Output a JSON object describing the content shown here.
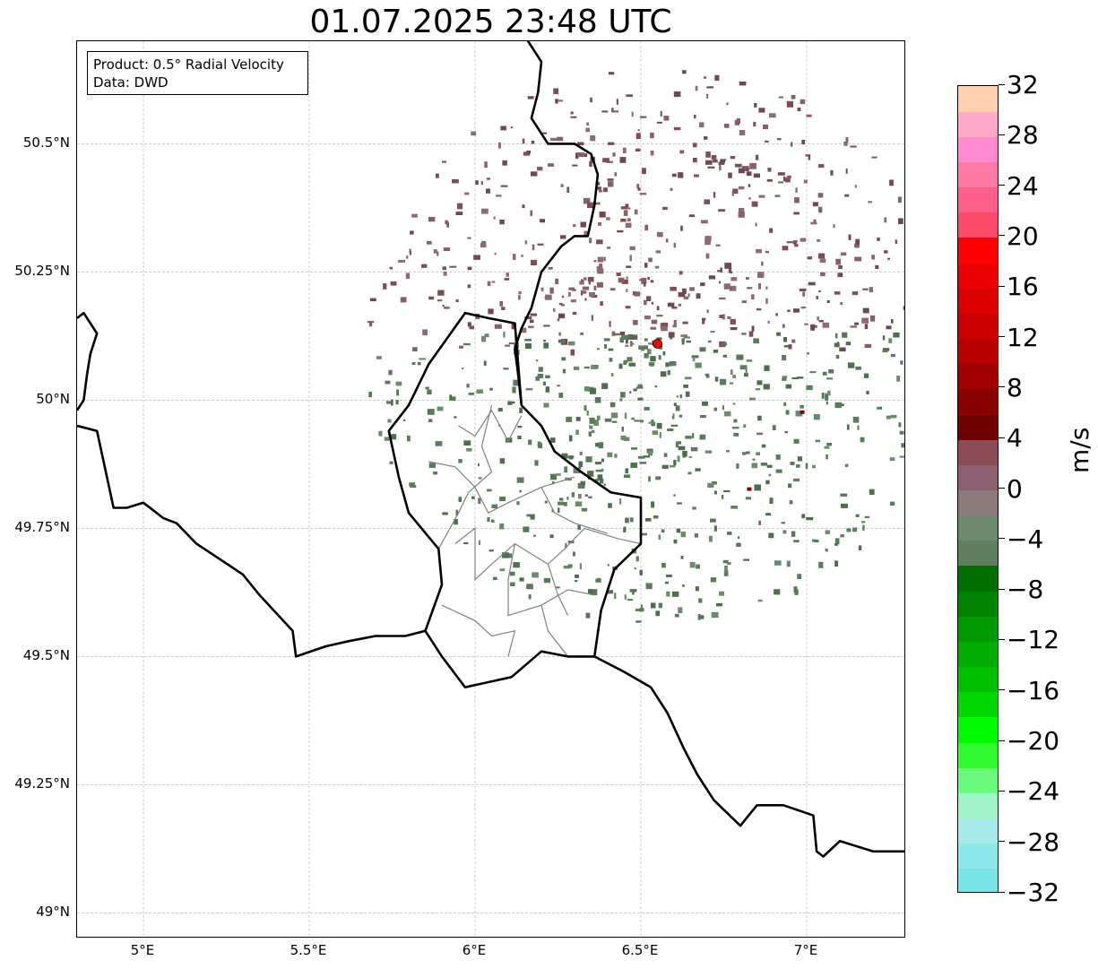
{
  "title": "01.07.2025 23:48 UTC",
  "info_box": {
    "product": "Product: 0.5° Radial Velocity",
    "data_source": "Data: DWD"
  },
  "map": {
    "extent": {
      "lon_min": 4.8,
      "lon_max": 7.3,
      "lat_min": 48.95,
      "lat_max": 50.7
    },
    "lat_ticks": [
      {
        "value": 50.5,
        "label": "50.5°N"
      },
      {
        "value": 50.25,
        "label": "50.25°N"
      },
      {
        "value": 50.0,
        "label": "50°N"
      },
      {
        "value": 49.75,
        "label": "49.75°N"
      },
      {
        "value": 49.5,
        "label": "49.5°N"
      },
      {
        "value": 49.25,
        "label": "49.25°N"
      },
      {
        "value": 49.0,
        "label": "49°N"
      }
    ],
    "lon_ticks": [
      {
        "value": 5.0,
        "label": "5°E"
      },
      {
        "value": 5.5,
        "label": "5.5°E"
      },
      {
        "value": 6.0,
        "label": "6°E"
      },
      {
        "value": 6.5,
        "label": "6.5°E"
      },
      {
        "value": 7.0,
        "label": "7°E"
      }
    ],
    "radar_site": {
      "lon": 6.55,
      "lat": 50.11,
      "color": "#ff0000"
    },
    "borders": {
      "west": [
        [
          4.8,
          50.16
        ],
        [
          4.82,
          50.17
        ],
        [
          4.86,
          50.13
        ],
        [
          4.84,
          50.09
        ],
        [
          4.83,
          50.05
        ],
        [
          4.82,
          50.0
        ],
        [
          4.8,
          49.98
        ]
      ],
      "france_belgium": [
        [
          4.8,
          49.95
        ],
        [
          4.86,
          49.94
        ],
        [
          4.88,
          49.88
        ],
        [
          4.91,
          49.79
        ],
        [
          4.95,
          49.79
        ],
        [
          5.0,
          49.8
        ],
        [
          5.06,
          49.77
        ],
        [
          5.1,
          49.76
        ],
        [
          5.16,
          49.72
        ],
        [
          5.23,
          49.69
        ],
        [
          5.3,
          49.66
        ],
        [
          5.35,
          49.62
        ],
        [
          5.45,
          49.55
        ],
        [
          5.46,
          49.5
        ],
        [
          5.55,
          49.52
        ],
        [
          5.62,
          49.53
        ],
        [
          5.7,
          49.54
        ],
        [
          5.79,
          49.54
        ],
        [
          5.85,
          49.55
        ]
      ],
      "luxembourg": [
        [
          5.85,
          49.55
        ],
        [
          5.9,
          49.64
        ],
        [
          5.89,
          49.71
        ],
        [
          5.8,
          49.78
        ],
        [
          5.77,
          49.85
        ],
        [
          5.74,
          49.94
        ],
        [
          5.8,
          49.99
        ],
        [
          5.86,
          50.07
        ],
        [
          5.97,
          50.17
        ],
        [
          6.04,
          50.16
        ],
        [
          6.12,
          50.15
        ],
        [
          6.13,
          50.07
        ],
        [
          6.14,
          49.99
        ],
        [
          6.2,
          49.95
        ],
        [
          6.24,
          49.9
        ],
        [
          6.32,
          49.86
        ],
        [
          6.41,
          49.82
        ],
        [
          6.5,
          49.81
        ],
        [
          6.5,
          49.72
        ],
        [
          6.42,
          49.67
        ],
        [
          6.38,
          49.59
        ],
        [
          6.36,
          49.5
        ],
        [
          6.28,
          49.5
        ],
        [
          6.2,
          49.51
        ],
        [
          6.11,
          49.46
        ],
        [
          6.04,
          49.45
        ],
        [
          5.97,
          49.44
        ],
        [
          5.9,
          49.5
        ],
        [
          5.85,
          49.55
        ]
      ],
      "belgium_germany": [
        [
          6.14,
          50.72
        ],
        [
          6.2,
          50.66
        ],
        [
          6.19,
          50.6
        ],
        [
          6.17,
          50.55
        ],
        [
          6.22,
          50.5
        ],
        [
          6.3,
          50.5
        ],
        [
          6.35,
          50.48
        ],
        [
          6.37,
          50.44
        ],
        [
          6.36,
          50.38
        ],
        [
          6.34,
          50.32
        ],
        [
          6.3,
          50.32
        ],
        [
          6.26,
          50.3
        ],
        [
          6.2,
          50.25
        ],
        [
          6.17,
          50.18
        ],
        [
          6.14,
          50.14
        ],
        [
          6.12,
          50.1
        ],
        [
          6.13,
          50.05
        ],
        [
          6.14,
          49.99
        ]
      ],
      "germany_france": [
        [
          6.36,
          49.5
        ],
        [
          6.45,
          49.47
        ],
        [
          6.53,
          49.44
        ],
        [
          6.58,
          49.39
        ],
        [
          6.63,
          49.32
        ],
        [
          6.67,
          49.27
        ],
        [
          6.72,
          49.22
        ],
        [
          6.8,
          49.17
        ],
        [
          6.85,
          49.21
        ],
        [
          6.93,
          49.21
        ],
        [
          7.02,
          49.19
        ],
        [
          7.03,
          49.12
        ],
        [
          7.05,
          49.11
        ],
        [
          7.1,
          49.14
        ],
        [
          7.2,
          49.12
        ],
        [
          7.3,
          49.12
        ]
      ]
    },
    "cantons": [
      [
        [
          5.95,
          49.95
        ],
        [
          6.0,
          49.93
        ],
        [
          6.05,
          49.98
        ],
        [
          6.1,
          49.92
        ],
        [
          6.14,
          49.97
        ]
      ],
      [
        [
          5.86,
          49.88
        ],
        [
          5.94,
          49.87
        ],
        [
          6.0,
          49.83
        ],
        [
          6.04,
          49.78
        ],
        [
          6.1,
          49.8
        ],
        [
          6.2,
          49.83
        ],
        [
          6.3,
          49.85
        ]
      ],
      [
        [
          6.05,
          49.99
        ],
        [
          6.02,
          49.91
        ],
        [
          6.05,
          49.86
        ],
        [
          5.98,
          49.82
        ]
      ],
      [
        [
          5.94,
          49.72
        ],
        [
          6.0,
          49.75
        ],
        [
          6.0,
          49.65
        ],
        [
          6.05,
          49.68
        ],
        [
          6.12,
          49.72
        ],
        [
          6.22,
          49.68
        ],
        [
          6.27,
          49.71
        ],
        [
          6.33,
          49.75
        ],
        [
          6.43,
          49.73
        ],
        [
          6.5,
          49.72
        ]
      ],
      [
        [
          6.12,
          49.72
        ],
        [
          6.1,
          49.65
        ],
        [
          6.1,
          49.58
        ],
        [
          6.2,
          49.6
        ],
        [
          6.28,
          49.63
        ],
        [
          6.36,
          49.62
        ]
      ],
      [
        [
          5.9,
          49.6
        ],
        [
          6.0,
          49.57
        ],
        [
          6.05,
          49.54
        ],
        [
          6.12,
          49.55
        ],
        [
          6.1,
          49.5
        ]
      ],
      [
        [
          6.2,
          49.6
        ],
        [
          6.22,
          49.55
        ],
        [
          6.28,
          49.5
        ]
      ],
      [
        [
          6.2,
          49.83
        ],
        [
          6.24,
          49.78
        ],
        [
          6.3,
          49.76
        ],
        [
          6.4,
          49.74
        ]
      ],
      [
        [
          5.98,
          49.82
        ],
        [
          5.95,
          49.78
        ],
        [
          5.89,
          49.71
        ]
      ],
      [
        [
          6.22,
          49.68
        ],
        [
          6.25,
          49.62
        ],
        [
          6.28,
          49.58
        ]
      ]
    ]
  },
  "colorbar": {
    "label": "m/s",
    "min": -32,
    "max": 32,
    "ticks": [
      "32",
      "28",
      "24",
      "20",
      "16",
      "12",
      "8",
      "4",
      "0",
      "−4",
      "−8",
      "−12",
      "−16",
      "−20",
      "−24",
      "−28",
      "−32"
    ],
    "tick_values": [
      32,
      28,
      24,
      20,
      16,
      12,
      8,
      4,
      0,
      -4,
      -8,
      -12,
      -16,
      -20,
      -24,
      -28,
      -32
    ],
    "colors": [
      "#7ae5e5",
      "#8de9e9",
      "#a6eaea",
      "#9ff5c8",
      "#6cfa7c",
      "#31fa31",
      "#00fa00",
      "#00d800",
      "#00c000",
      "#00ac00",
      "#009800",
      "#008400",
      "#006e00",
      "#5f7f5f",
      "#6e8a6e",
      "#8c7b7b",
      "#8a6070",
      "#8b4b55",
      "#6f0000",
      "#880000",
      "#a00000",
      "#b80000",
      "#cc0000",
      "#dd0000",
      "#ee0000",
      "#ff0000",
      "#ff4b6a",
      "#ff608a",
      "#ff7aa4",
      "#ff8ad0",
      "#ffa8c8",
      "#ffd0b0"
    ]
  }
}
